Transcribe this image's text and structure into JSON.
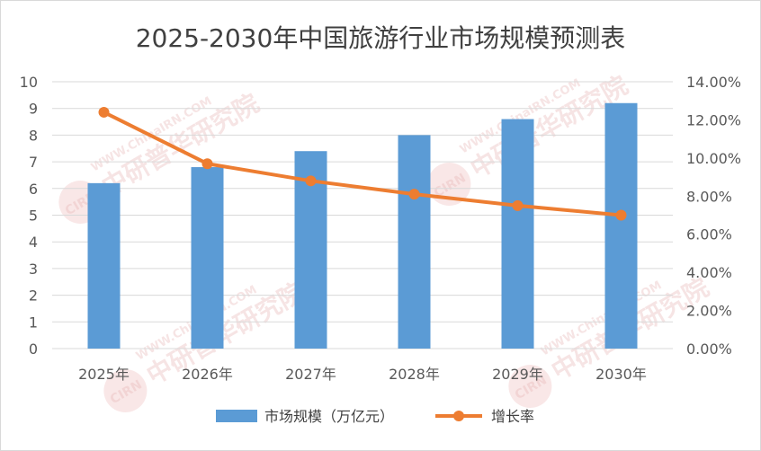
{
  "chart_data": {
    "type": "bar",
    "title": "2025-2030年中国旅游行业市场规模预测表",
    "categories": [
      "2025年",
      "2026年",
      "2027年",
      "2028年",
      "2029年",
      "2030年"
    ],
    "series": [
      {
        "name": "市场规模（万亿元）",
        "type": "bar",
        "axis": "left",
        "color": "#5b9bd5",
        "values": [
          6.2,
          6.8,
          7.4,
          8.0,
          8.6,
          9.2
        ]
      },
      {
        "name": "增长率",
        "type": "line",
        "axis": "right",
        "color": "#ed7d31",
        "values": [
          12.4,
          9.7,
          8.8,
          8.1,
          7.5,
          7.0
        ]
      }
    ],
    "y_left": {
      "min": 0,
      "max": 10,
      "ticks": [
        "0",
        "1",
        "2",
        "3",
        "4",
        "5",
        "6",
        "7",
        "8",
        "9",
        "10"
      ]
    },
    "y_right": {
      "min": 0,
      "max": 14,
      "unit": "%",
      "ticks": [
        "0.00%",
        "2.00%",
        "4.00%",
        "6.00%",
        "8.00%",
        "10.00%",
        "12.00%",
        "14.00%"
      ]
    },
    "grid": true,
    "legend_position": "bottom"
  },
  "watermark": {
    "text": "中研普华研究院",
    "url": "WWW.ChinaIRN.COM",
    "logo": "CIRN"
  }
}
